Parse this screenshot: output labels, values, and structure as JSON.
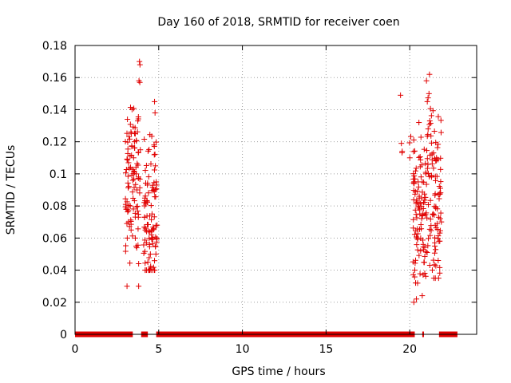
{
  "chart_data": {
    "type": "scatter",
    "title": "Day 160 of 2018, SRMTID for receiver coen",
    "xlabel": "GPS time / hours",
    "ylabel": "SRMTID / TECUs",
    "xlim": [
      0,
      24
    ],
    "ylim": [
      0,
      0.18
    ],
    "x_ticks": [
      0,
      5,
      10,
      15,
      20
    ],
    "x_tick_labels": [
      "0",
      "5",
      "10",
      "15",
      "20"
    ],
    "y_ticks": [
      0,
      0.02,
      0.04,
      0.06,
      0.08,
      0.1,
      0.12,
      0.14,
      0.16,
      0.18
    ],
    "y_tick_labels": [
      "0",
      "0.02",
      "0.04",
      "0.06",
      "0.08",
      "0.1",
      "0.12",
      "0.14",
      "0.16",
      "0.18"
    ],
    "grid": true,
    "marker": "+",
    "color": "#e00000",
    "zero_segments": [
      [
        0.0,
        3.45
      ],
      [
        3.95,
        4.35
      ],
      [
        4.85,
        20.3
      ],
      [
        20.75,
        20.85
      ],
      [
        21.75,
        22.85
      ]
    ],
    "clusters": [
      {
        "x_min": 3.0,
        "x_max": 3.9,
        "y_min": 0.03,
        "y_max": 0.17,
        "count": 90,
        "y_center": 0.095
      },
      {
        "x_min": 4.1,
        "x_max": 4.9,
        "y_min": 0.04,
        "y_max": 0.145,
        "count": 90,
        "y_center": 0.07
      },
      {
        "x_min": 19.5,
        "x_max": 20.2,
        "y_min": 0.11,
        "y_max": 0.15,
        "count": 4,
        "y_center": 0.12
      },
      {
        "x_min": 20.2,
        "x_max": 20.9,
        "y_min": 0.02,
        "y_max": 0.135,
        "count": 85,
        "y_center": 0.075
      },
      {
        "x_min": 20.9,
        "x_max": 21.9,
        "y_min": 0.035,
        "y_max": 0.165,
        "count": 100,
        "y_center": 0.085
      }
    ],
    "points": [
      [
        3.05,
        0.078
      ],
      [
        3.1,
        0.069
      ],
      [
        3.12,
        0.06
      ],
      [
        3.3,
        0.08
      ],
      [
        3.35,
        0.065
      ],
      [
        3.5,
        0.11
      ],
      [
        3.55,
        0.12
      ],
      [
        3.6,
        0.125
      ],
      [
        3.65,
        0.1
      ],
      [
        3.7,
        0.09
      ],
      [
        3.75,
        0.133
      ],
      [
        3.8,
        0.044
      ],
      [
        3.8,
        0.03
      ],
      [
        3.85,
        0.17
      ],
      [
        3.88,
        0.168
      ],
      [
        3.82,
        0.158
      ],
      [
        3.87,
        0.157
      ],
      [
        3.9,
        0.115
      ],
      [
        3.6,
        0.06
      ],
      [
        3.65,
        0.055
      ],
      [
        4.15,
        0.073
      ],
      [
        4.2,
        0.065
      ],
      [
        4.3,
        0.083
      ],
      [
        4.35,
        0.045
      ],
      [
        4.4,
        0.04
      ],
      [
        4.45,
        0.056
      ],
      [
        4.5,
        0.05
      ],
      [
        4.6,
        0.075
      ],
      [
        4.7,
        0.09
      ],
      [
        4.72,
        0.118
      ],
      [
        4.75,
        0.145
      ],
      [
        4.78,
        0.138
      ],
      [
        4.8,
        0.105
      ],
      [
        4.85,
        0.095
      ],
      [
        4.9,
        0.068
      ],
      [
        19.45,
        0.149
      ],
      [
        19.5,
        0.119
      ],
      [
        19.55,
        0.114
      ],
      [
        20.3,
        0.04
      ],
      [
        20.35,
        0.032
      ],
      [
        20.4,
        0.022
      ],
      [
        20.45,
        0.06
      ],
      [
        20.5,
        0.095
      ],
      [
        20.55,
        0.132
      ],
      [
        20.6,
        0.075
      ],
      [
        20.65,
        0.052
      ],
      [
        20.7,
        0.085
      ],
      [
        20.75,
        0.095
      ],
      [
        20.8,
        0.037
      ],
      [
        21.0,
        0.158
      ],
      [
        21.05,
        0.145
      ],
      [
        21.1,
        0.128
      ],
      [
        21.15,
        0.15
      ],
      [
        21.18,
        0.162
      ],
      [
        21.2,
        0.133
      ],
      [
        21.3,
        0.098
      ],
      [
        21.4,
        0.075
      ],
      [
        21.5,
        0.055
      ],
      [
        21.6,
        0.11
      ],
      [
        21.7,
        0.046
      ],
      [
        21.75,
        0.058
      ],
      [
        21.8,
        0.088
      ],
      [
        21.2,
        0.043
      ],
      [
        21.35,
        0.04
      ]
    ]
  }
}
